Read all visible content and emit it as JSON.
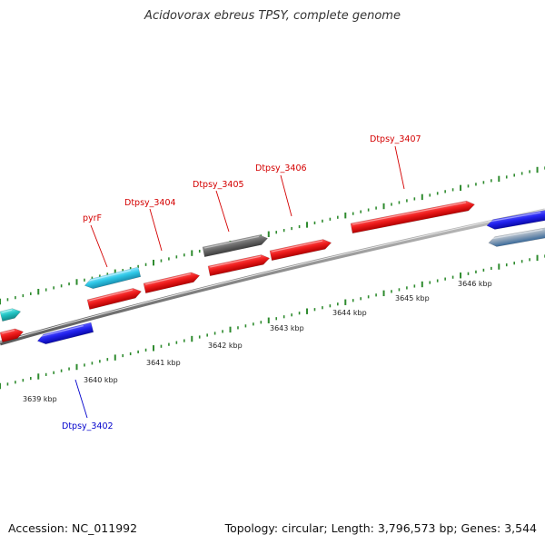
{
  "title": "Acidovorax ebreus TPSY, complete genome",
  "footer": {
    "accession": "Accession: NC_011992",
    "summary": "Topology: circular; Length: 3,796,573 bp; Genes: 3,544"
  },
  "colors": {
    "backbone": "#8a8a8a",
    "tick": "#2e8b2e",
    "gene_red": "#e41a1c",
    "gene_blue": "#1f1fe0",
    "gene_cyan": "#2ec7e6",
    "gene_teal": "#22c4c4",
    "gene_gray": "#6b6b6b",
    "label_red": "#d40000",
    "label_blue": "#0000cc"
  },
  "ruler": {
    "unit": "kbp",
    "labels": [
      "3639 kbp",
      "3640 kbp",
      "3641 kbp",
      "3642 kbp",
      "3643 kbp",
      "3644 kbp",
      "3645 kbp",
      "3646 kbp"
    ]
  },
  "gene_labels": [
    {
      "name": "pyrF",
      "color": "red"
    },
    {
      "name": "Dtpsy_3404",
      "color": "red"
    },
    {
      "name": "Dtpsy_3405",
      "color": "red"
    },
    {
      "name": "Dtpsy_3406",
      "color": "red"
    },
    {
      "name": "Dtpsy_3407",
      "color": "red"
    },
    {
      "name": "Dtpsy_3402",
      "color": "blue"
    }
  ]
}
